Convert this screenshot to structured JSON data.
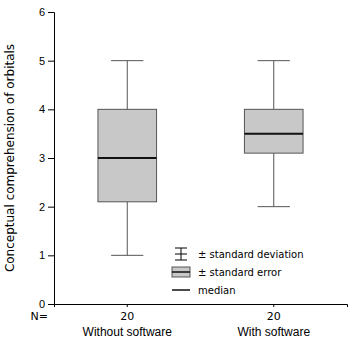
{
  "chart_data": {
    "type": "box",
    "categories": [
      "Without software",
      "With software"
    ],
    "median": [
      3.0,
      3.5
    ],
    "q1": [
      2.1,
      3.1
    ],
    "q3": [
      4.0,
      4.0
    ],
    "whisker_low": [
      1.0,
      2.0
    ],
    "whisker_high": [
      5.0,
      5.0
    ],
    "n_label": "N=",
    "n_labels": [
      "20",
      "20"
    ],
    "ylabel": "Conceptual comprehension of orbitals",
    "ylim": [
      0,
      6
    ],
    "yticks": [
      0,
      1,
      2,
      3,
      4,
      5,
      6
    ],
    "color": "#c8c8c8",
    "legend": "lower right",
    "legend_labels": [
      "± standard deviation",
      "± standard error",
      "median"
    ]
  }
}
